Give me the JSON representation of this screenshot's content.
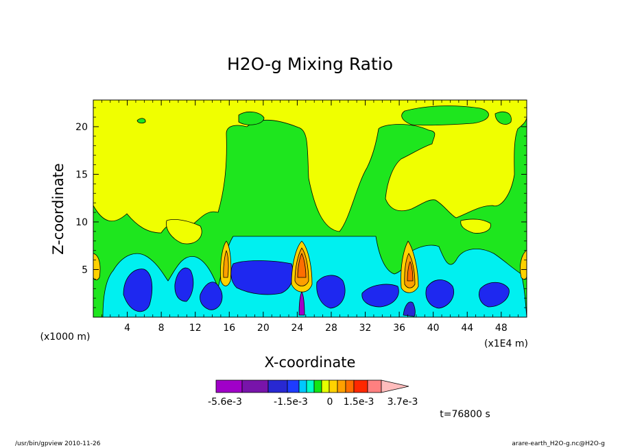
{
  "chart_data": {
    "type": "heatmap",
    "title": "H2O-g Mixing Ratio",
    "xlabel": "X-coordinate",
    "ylabel": "Z-coordinate",
    "x_unit_left": "(x1000 m)",
    "x_unit_right": "(x1E4 m)",
    "xlim": [
      0,
      51
    ],
    "ylim": [
      0,
      22.8
    ],
    "x_ticks": [
      4,
      8,
      12,
      16,
      20,
      24,
      28,
      32,
      36,
      40,
      44,
      48
    ],
    "y_ticks": [
      5,
      10,
      15,
      20
    ],
    "timestamp": "t=76800 s",
    "colorbar": {
      "colors": [
        "#a000c8",
        "#7814aa",
        "#2828d2",
        "#1e3cff",
        "#00c8ff",
        "#00ffc8",
        "#14e614",
        "#e6ff00",
        "#ffd200",
        "#ffa000",
        "#ff6e00",
        "#ff2800",
        "#ff8080",
        "#ffbcbc"
      ],
      "labels": [
        "-5.6e-3",
        "-1.5e-3",
        "0",
        "1.5e-3",
        "3.7e-3"
      ]
    },
    "regions": [
      {
        "name": "upper-moist-yellow",
        "level": "0 to 1.5e-3",
        "color": "#f0ff00"
      },
      {
        "name": "mid-green",
        "level": "-1.5e-3 to 0",
        "color": "#1ee61e"
      },
      {
        "name": "lower-cyan",
        "level": "-3e-3 to -1.5e-3",
        "color": "#00f0f0"
      },
      {
        "name": "dry-blue-cores",
        "level": "< -3e-3",
        "color": "#1e28f0"
      },
      {
        "name": "moist-plumes",
        "level": "> 1.5e-3",
        "x_centers": [
          15.6,
          24.5,
          37.5
        ]
      }
    ]
  },
  "footer": {
    "left": "/usr/bin/gpview   2010-11-26",
    "right": "arare-earth_H2O-g.nc@H2O-g"
  }
}
